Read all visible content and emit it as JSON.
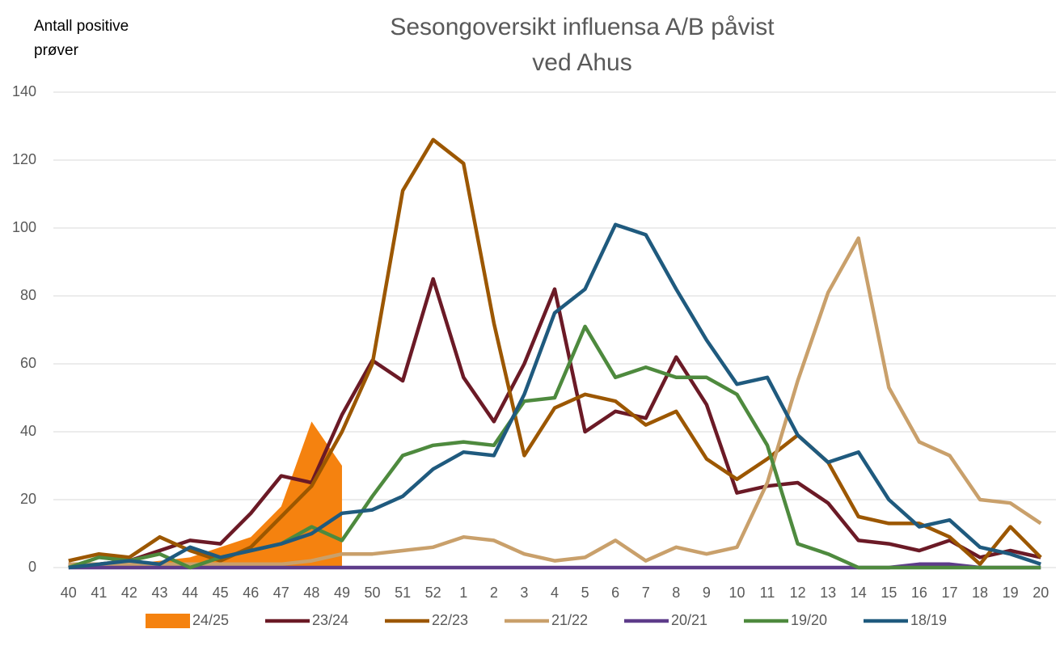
{
  "chart_data": {
    "type": "line",
    "title": "Sesongoversikt influensa A/B påvist ved Ahus",
    "y_label": "Antall positive prøver",
    "categories": [
      "40",
      "41",
      "42",
      "43",
      "44",
      "45",
      "46",
      "47",
      "48",
      "49",
      "50",
      "51",
      "52",
      "1",
      "2",
      "3",
      "4",
      "5",
      "6",
      "7",
      "8",
      "9",
      "10",
      "11",
      "12",
      "13",
      "14",
      "15",
      "16",
      "17",
      "18",
      "19",
      "20"
    ],
    "ylim": [
      0,
      140
    ],
    "yticks": [
      0,
      20,
      40,
      60,
      80,
      100,
      120,
      140
    ],
    "grid": true,
    "legend": "bottom",
    "series": [
      {
        "name": "24/25",
        "type": "area",
        "color": "#f5820f",
        "values": [
          0,
          1,
          1,
          2,
          3,
          6,
          9,
          18,
          43,
          30,
          null,
          null,
          null,
          null,
          null,
          null,
          null,
          null,
          null,
          null,
          null,
          null,
          null,
          null,
          null,
          null,
          null,
          null,
          null,
          null,
          null,
          null,
          null
        ]
      },
      {
        "name": "23/24",
        "color": "#6b1a26",
        "values": [
          1,
          1,
          2,
          5,
          8,
          7,
          16,
          27,
          25,
          45,
          61,
          55,
          85,
          56,
          43,
          60,
          82,
          40,
          46,
          44,
          62,
          48,
          22,
          24,
          25,
          19,
          8,
          7,
          5,
          8,
          3,
          5,
          3
        ]
      },
      {
        "name": "22/23",
        "color": "#9c5700",
        "values": [
          2,
          4,
          3,
          9,
          5,
          2,
          6,
          15,
          24,
          40,
          60,
          111,
          126,
          119,
          72,
          33,
          47,
          51,
          49,
          42,
          46,
          32,
          26,
          32,
          39,
          31,
          15,
          13,
          13,
          9,
          1,
          12,
          3
        ]
      },
      {
        "name": "21/22",
        "color": "#c9a06b",
        "values": [
          1,
          1,
          1,
          1,
          1,
          1,
          1,
          1,
          2,
          4,
          4,
          5,
          6,
          9,
          8,
          4,
          2,
          3,
          8,
          2,
          6,
          4,
          6,
          25,
          55,
          81,
          97,
          53,
          37,
          33,
          20,
          19,
          13
        ]
      },
      {
        "name": "20/21",
        "color": "#5e3c8a",
        "values": [
          0,
          0,
          0,
          0,
          0,
          0,
          0,
          0,
          0,
          0,
          0,
          0,
          0,
          0,
          0,
          0,
          0,
          0,
          0,
          0,
          0,
          0,
          0,
          0,
          0,
          0,
          0,
          0,
          1,
          1,
          0,
          0,
          0
        ]
      },
      {
        "name": "19/20",
        "color": "#4e8a3e",
        "values": [
          0,
          3,
          2,
          4,
          0,
          3,
          5,
          7,
          12,
          8,
          21,
          33,
          36,
          37,
          36,
          49,
          50,
          71,
          56,
          59,
          56,
          56,
          51,
          36,
          7,
          4,
          0,
          0,
          0,
          0,
          0,
          0,
          0
        ]
      },
      {
        "name": "18/19",
        "color": "#1f5a7e",
        "values": [
          0,
          1,
          2,
          1,
          6,
          3,
          5,
          7,
          10,
          16,
          17,
          21,
          29,
          34,
          33,
          51,
          75,
          82,
          101,
          98,
          82,
          67,
          54,
          56,
          39,
          31,
          34,
          20,
          12,
          14,
          6,
          4,
          1
        ]
      }
    ]
  }
}
